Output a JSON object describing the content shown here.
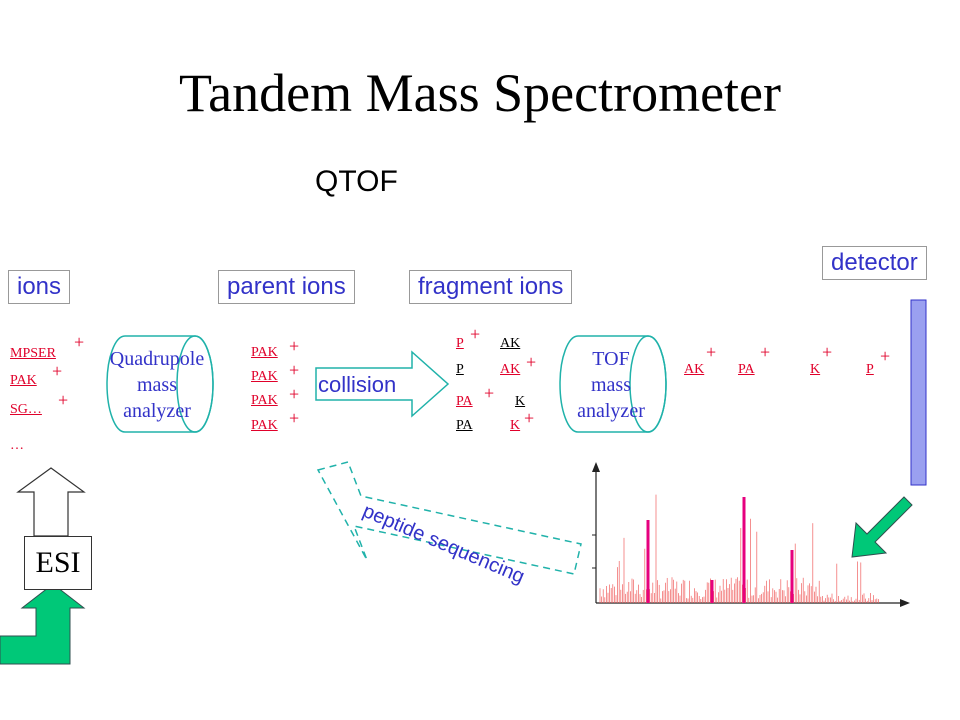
{
  "title": "Tandem Mass Spectrometer",
  "subtitle": "QTOF",
  "labels": {
    "ions": "ions",
    "parent_ions": "parent ions",
    "fragment_ions": "fragment ions",
    "detector": "detector",
    "collision": "collision",
    "peptide_sequencing": "peptide sequencing",
    "esi": "ESI"
  },
  "ions_list": [
    "MPSER",
    "PAK",
    "SG…",
    "…"
  ],
  "plus": "+",
  "quadrupole": {
    "line1": "Quadrupole",
    "line2": "mass",
    "line3": "analyzer"
  },
  "parent_list": [
    "PAK",
    "PAK",
    "PAK",
    "PAK"
  ],
  "fragments": {
    "r1a": "P",
    "r1b": "AK",
    "r2a": "P",
    "r2b": "AK",
    "r3a": "PA",
    "r3b": "K",
    "r4a": "PA",
    "r4b": "K"
  },
  "tof": {
    "line1": "TOF",
    "line2": "mass",
    "line3": "analyzer"
  },
  "detected": [
    "AK",
    "PA",
    "K",
    "P"
  ],
  "colors": {
    "accent": "#3232c8",
    "ion_red": "#e0002a",
    "arrow_green": "#00c878",
    "peak_pink": "#e6007e"
  }
}
